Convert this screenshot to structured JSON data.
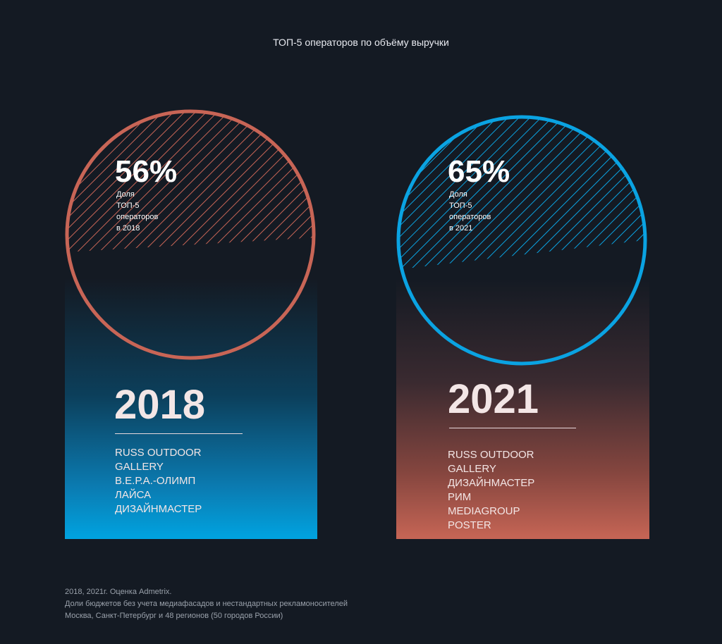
{
  "title": "ТОП-5 операторов по объёму выручки",
  "colors": {
    "background": "#141a23",
    "accent_2018": "#c86556",
    "accent_2021": "#0aa3e2"
  },
  "panels": [
    {
      "year": "2018",
      "share_value": "56%",
      "share_label": "Доля ТОП-5 операторов\nв 2018",
      "operators": [
        "RUSS OUTDOOR",
        "GALLERY",
        "В.Е.Р.А.-ОЛИМП",
        "ЛАЙСА",
        "ДИЗАЙНМАСТЕР"
      ]
    },
    {
      "year": "2021",
      "share_value": "65%",
      "share_label": "Доля ТОП-5 операторов\nв 2021",
      "operators": [
        "RUSS OUTDOOR",
        "GALLERY",
        "ДИЗАЙНМАСТЕР",
        "РИМ MEDIAGROUP",
        "POSTER"
      ]
    }
  ],
  "footnote": [
    "2018, 2021г. Оценка Admetrix.",
    "Доли бюджетов без учета медиафасадов и нестандартных рекламоносителей",
    "Москва, Санкт-Петербург и 48 регионов (50 городов России)"
  ]
}
